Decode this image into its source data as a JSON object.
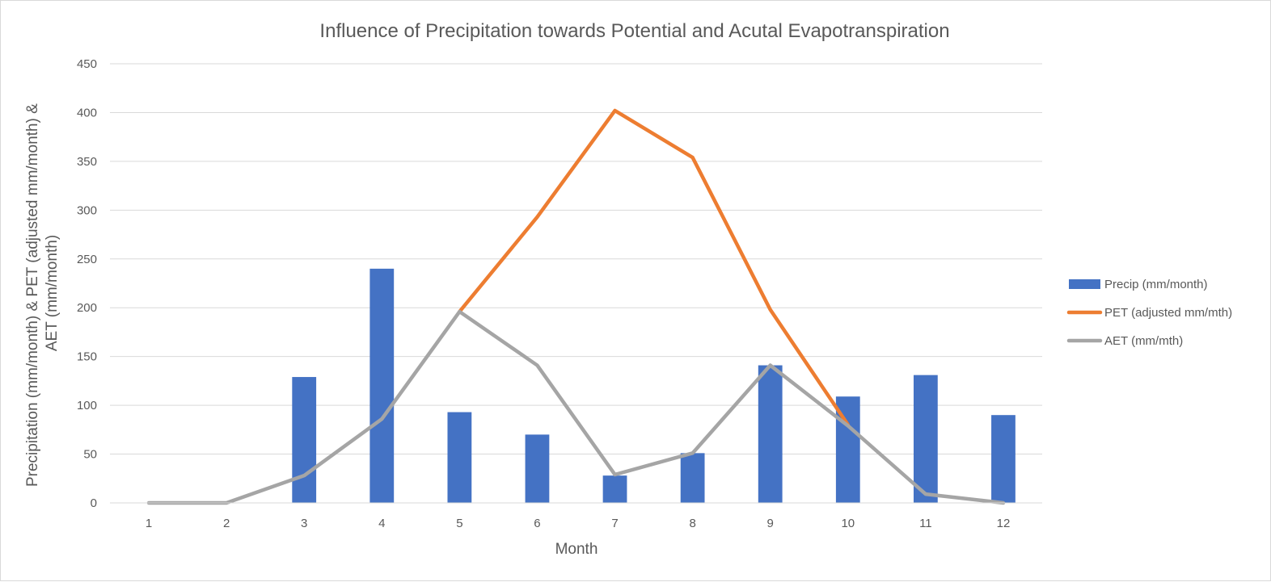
{
  "chart_data": {
    "type": "bar",
    "title": "Influence of Precipitation towards Potential and Acutal Evapotranspiration",
    "xlabel": "Month",
    "ylabel_lines": [
      "Precipitation (mm/month) & PET (adjusted mm/month) &",
      "AET (mm/month)"
    ],
    "categories": [
      "1",
      "2",
      "3",
      "4",
      "5",
      "6",
      "7",
      "8",
      "9",
      "10",
      "11",
      "12"
    ],
    "ylim": [
      0,
      450
    ],
    "yticks": [
      0,
      50,
      100,
      150,
      200,
      250,
      300,
      350,
      400,
      450
    ],
    "grid": true,
    "legend_position": "right",
    "series": [
      {
        "name": "Precip (mm/month)",
        "kind": "bar",
        "color": "#4472c4",
        "values": [
          0,
          0,
          129,
          240,
          93,
          70,
          28,
          51,
          141,
          109,
          131,
          90
        ]
      },
      {
        "name": "PET (adjusted mm/mth)",
        "kind": "line",
        "color": "#ed7d31",
        "values": [
          null,
          null,
          null,
          null,
          196,
          293,
          402,
          354,
          198,
          80,
          null,
          null
        ]
      },
      {
        "name": "AET (mm/mth)",
        "kind": "line",
        "color": "#a5a5a5",
        "values": [
          0,
          0,
          28,
          86,
          196,
          141,
          29,
          51,
          141,
          79,
          9,
          0
        ]
      }
    ]
  }
}
